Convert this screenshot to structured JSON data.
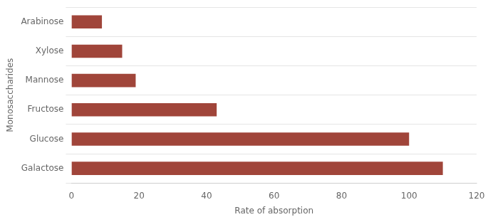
{
  "chart_data": {
    "type": "bar",
    "orientation": "horizontal",
    "categories": [
      "Galactose",
      "Glucose",
      "Fructose",
      "Mannose",
      "Xylose",
      "Arabinose"
    ],
    "values": [
      110,
      100,
      43,
      19,
      15,
      9
    ],
    "color": "#a0453a",
    "xlabel": "Rate of absorption",
    "ylabel": "Monosaccharides",
    "xlim": [
      0,
      120
    ],
    "xticks": [
      0,
      20,
      40,
      60,
      80,
      100,
      120
    ],
    "grid": true
  }
}
